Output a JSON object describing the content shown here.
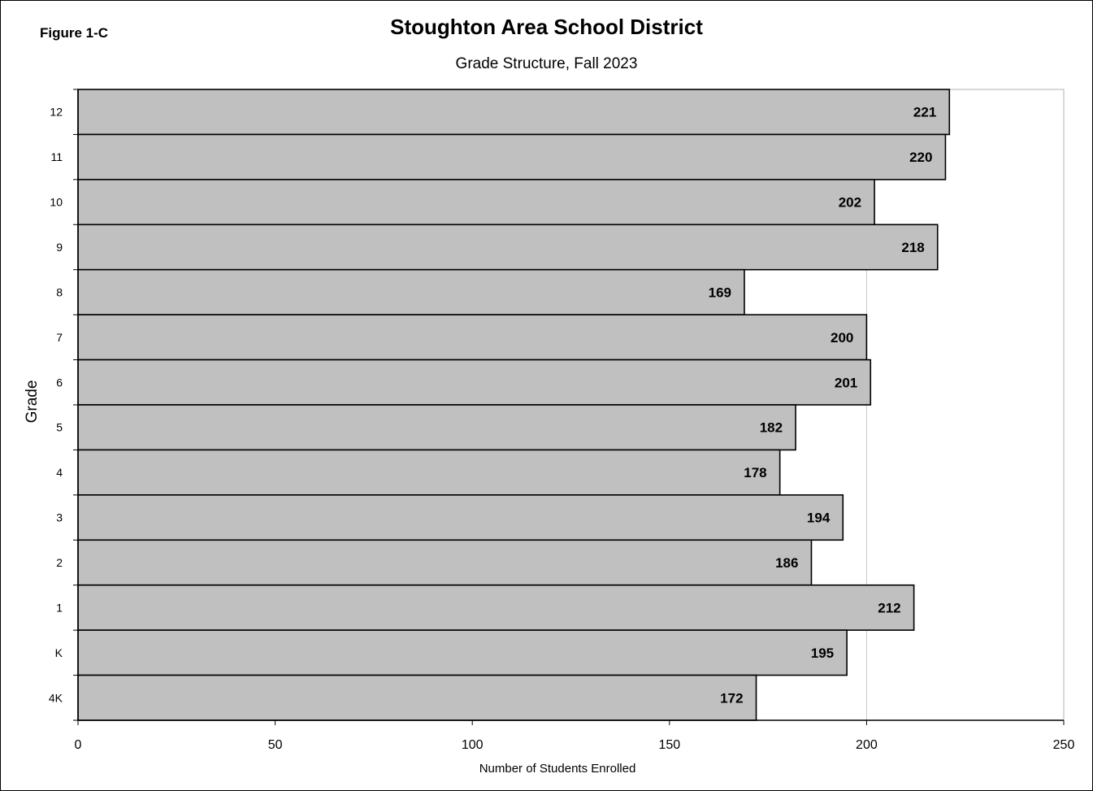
{
  "figure_label": "Figure 1-C",
  "chart_data": {
    "type": "bar",
    "orientation": "horizontal",
    "title": "Stoughton Area School District",
    "subtitle": "Grade Structure,  Fall 2023",
    "xlabel": "Number  of Students  Enrolled",
    "ylabel": "Grade",
    "categories": [
      "12",
      "11",
      "10",
      "9",
      "8",
      "7",
      "6",
      "5",
      "4",
      "3",
      "2",
      "1",
      "K",
      "4K"
    ],
    "values": [
      221,
      220,
      202,
      218,
      169,
      200,
      201,
      182,
      178,
      194,
      186,
      212,
      195,
      172
    ],
    "xlim": [
      0,
      250
    ],
    "xticks": [
      "0",
      "50",
      "100",
      "150",
      "200",
      "250"
    ],
    "grid": "vertical gridline at 200",
    "bar_color": "#c0c0c0",
    "bar_outline_color": "#000000",
    "data_labels": true
  }
}
